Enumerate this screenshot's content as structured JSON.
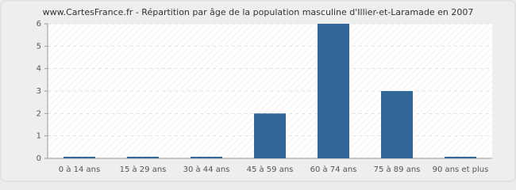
{
  "chart_data": {
    "type": "bar",
    "title": "www.CartesFrance.fr - Répartition par âge de la population masculine d'Illier-et-Laramade en 2007",
    "categories": [
      "0 à 14 ans",
      "15 à 29 ans",
      "30 à 44 ans",
      "45 à 59 ans",
      "60 à 74 ans",
      "75 à 89 ans",
      "90 ans et plus"
    ],
    "values": [
      0,
      0,
      0,
      2,
      6,
      3,
      0
    ],
    "color": "#336699",
    "ylim": [
      0,
      6
    ],
    "yticks": [
      0,
      1,
      2,
      3,
      4,
      5,
      6
    ],
    "grid": true
  }
}
